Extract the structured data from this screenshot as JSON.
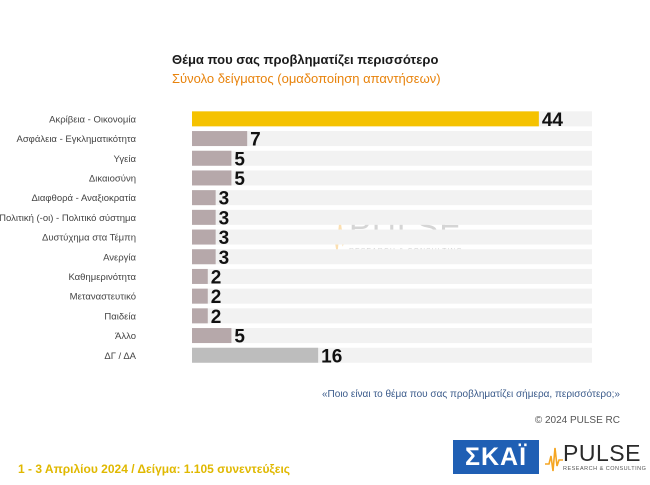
{
  "chart_data": {
    "type": "bar",
    "orientation": "horizontal",
    "title": "Θέμα που σας προβληματίζει περισσότερο",
    "subtitle": "Σύνολο δείγματος (ομαδοποίηση απαντήσεων)",
    "categories": [
      "Ακρίβεια - Οικονομία",
      "Ασφάλεια - Εγκληματικότητα",
      "Υγεία",
      "Δικαιοσύνη",
      "Διαφθορά - Αναξιοκρατία",
      "Πολιτική (-οι) - Πολιτικό σύστημα",
      "Δυστύχημα στα Τέμπη",
      "Ανεργία",
      "Καθημερινότητα",
      "Μεταναστευτικό",
      "Παιδεία",
      "Άλλο",
      "ΔΓ / ΔΑ"
    ],
    "values": [
      44,
      7,
      5,
      5,
      3,
      3,
      3,
      3,
      2,
      2,
      2,
      5,
      16
    ],
    "xlim": [
      0,
      60
    ],
    "grid": false,
    "colors": {
      "highlight": "#f5c200",
      "default": "#b6a8aa",
      "other": "#bdbdbd",
      "track": "#f2f2f2"
    }
  },
  "question": "«Ποιο είναι το θέμα που σας προβληματίζει σήμερα, περισσότερο;»",
  "copyright": "© 2024 PULSE RC",
  "footer": "1 - 3  Απριλίου 2024  /  Δείγμα:  1.105 συνεντεύξεις",
  "logos": {
    "skai": "ΣΚΑΪ",
    "pulse": "PULSE",
    "pulse_tagline": "RESEARCH & CONSULTING",
    "watermark": "PULSE",
    "watermark_tagline": "RESEARCH & CONSULTING"
  }
}
